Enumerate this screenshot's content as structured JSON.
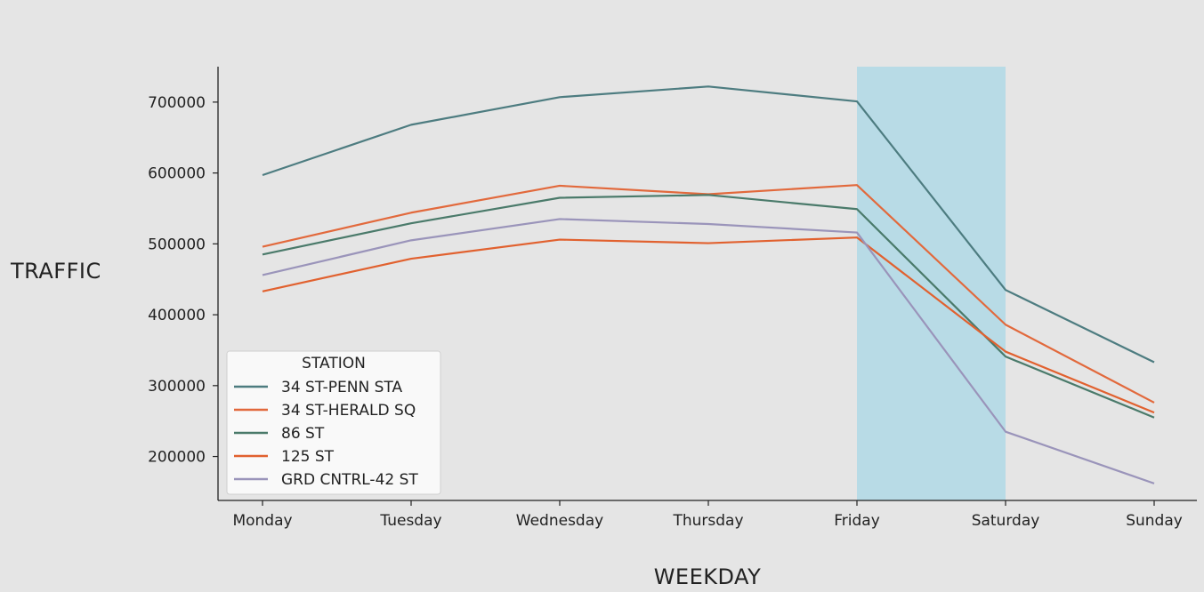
{
  "chart_data": {
    "type": "line",
    "title": "",
    "xlabel": "WEEKDAY",
    "ylabel": "TRAFFIC",
    "categories": [
      "Monday",
      "Tuesday",
      "Wednesday",
      "Thursday",
      "Friday",
      "Saturday",
      "Sunday"
    ],
    "yticks": [
      200000,
      300000,
      400000,
      500000,
      600000,
      700000
    ],
    "ytick_labels": [
      "200000",
      "300000",
      "400000",
      "500000",
      "600000",
      "700000"
    ],
    "ylim": [
      138000,
      750000
    ],
    "grid": false,
    "highlight_span": {
      "from": "Friday",
      "to": "Saturday",
      "color": "#add8e6"
    },
    "legend": {
      "title": "STATION",
      "placement": "lower-left"
    },
    "series": [
      {
        "name": "34 ST-PENN STA",
        "color": "#4d7c80",
        "values": [
          597000,
          668000,
          707000,
          722000,
          701000,
          435000,
          333000
        ]
      },
      {
        "name": "34 ST-HERALD SQ",
        "color": "#e2693c",
        "values": [
          496000,
          544000,
          582000,
          570000,
          583000,
          386000,
          276000
        ]
      },
      {
        "name": "86 ST",
        "color": "#4a7a6a",
        "values": [
          485000,
          529000,
          565000,
          569000,
          549000,
          341000,
          255000
        ]
      },
      {
        "name": "125 ST",
        "color": "#e1612f",
        "values": [
          433000,
          479000,
          506000,
          501000,
          509000,
          348000,
          262000
        ]
      },
      {
        "name": "GRD CNTRL-42 ST",
        "color": "#9a94ba",
        "values": [
          456000,
          505000,
          535000,
          528000,
          516000,
          235000,
          162000
        ]
      }
    ]
  }
}
